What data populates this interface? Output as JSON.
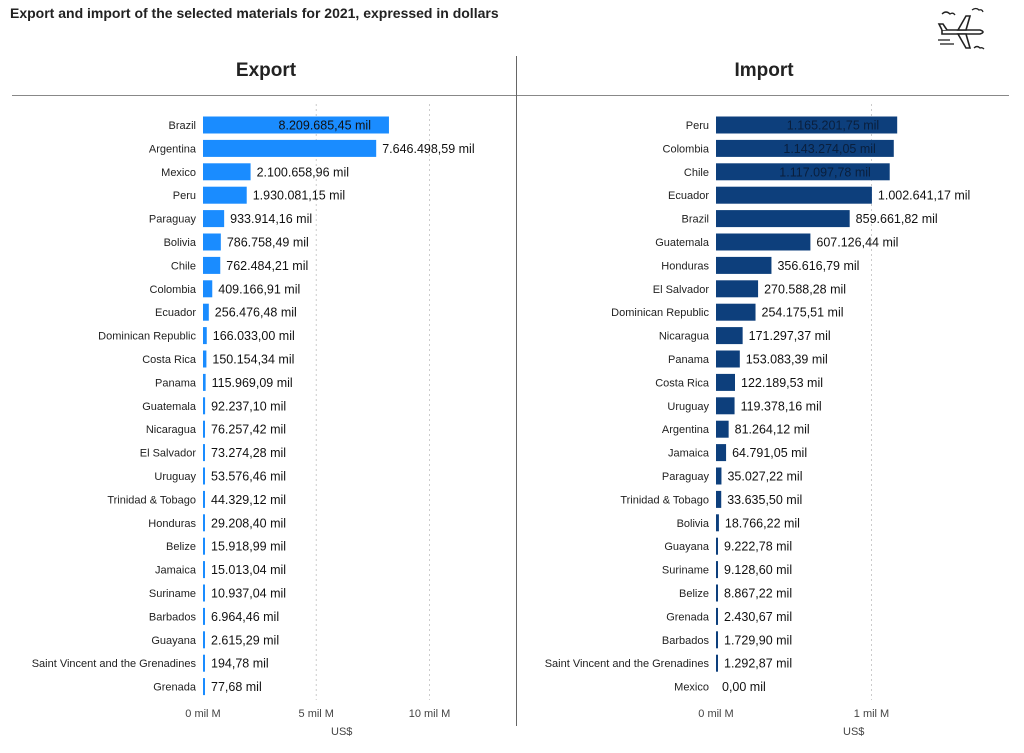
{
  "title": "Export and import of the selected materials for 2021, expressed in dollars",
  "icons": {
    "header": "airplane-icon"
  },
  "colors": {
    "export": "#1a8cff",
    "import": "#0d3f7c",
    "grid": "#cccccc"
  },
  "chart_data": [
    {
      "type": "bar",
      "orientation": "horizontal",
      "title": "Export",
      "xlabel": "US$",
      "xlim": [
        0,
        12
      ],
      "x_unit": "mil M",
      "xticks": [
        "0 mil M",
        "5 mil M",
        "10 mil M"
      ],
      "xtick_values": [
        0,
        5,
        10
      ],
      "categories": [
        "Brazil",
        "Argentina",
        "Mexico",
        "Peru",
        "Paraguay",
        "Bolivia",
        "Chile",
        "Colombia",
        "Ecuador",
        "Dominican Republic",
        "Costa Rica",
        "Panama",
        "Guatemala",
        "Nicaragua",
        "El Salvador",
        "Uruguay",
        "Trinidad & Tobago",
        "Honduras",
        "Belize",
        "Jamaica",
        "Suriname",
        "Barbados",
        "Guayana",
        "Saint Vincent and the Grenadines",
        "Grenada"
      ],
      "values": [
        8209685.45,
        7646498.59,
        2100658.96,
        1930081.15,
        933914.16,
        786758.49,
        762484.21,
        409166.91,
        256476.48,
        166033.0,
        150154.34,
        115969.09,
        92237.1,
        76257.42,
        73274.28,
        53576.46,
        44329.12,
        29208.4,
        15918.99,
        15013.04,
        10937.04,
        6964.46,
        2615.29,
        194.78,
        77.68
      ],
      "data_labels": [
        "8.209.685,45 mil",
        "7.646.498,59 mil",
        "2.100.658,96 mil",
        "1.930.081,15 mil",
        "933.914,16 mil",
        "786.758,49 mil",
        "762.484,21 mil",
        "409.166,91 mil",
        "256.476,48 mil",
        "166.033,00 mil",
        "150.154,34 mil",
        "115.969,09 mil",
        "92.237,10 mil",
        "76.257,42 mil",
        "73.274,28 mil",
        "53.576,46 mil",
        "44.329,12 mil",
        "29.208,40 mil",
        "15.918,99 mil",
        "15.013,04 mil",
        "10.937,04 mil",
        "6.964,46 mil",
        "2.615,29 mil",
        "194,78 mil",
        "77,68 mil"
      ],
      "grid": true
    },
    {
      "type": "bar",
      "orientation": "horizontal",
      "title": "Import",
      "xlabel": "US$",
      "xlim": [
        0,
        1.35
      ],
      "x_unit": "mil M",
      "xticks": [
        "0 mil M",
        "1 mil M"
      ],
      "xtick_values": [
        0,
        1
      ],
      "categories": [
        "Peru",
        "Colombia",
        "Chile",
        "Ecuador",
        "Brazil",
        "Guatemala",
        "Honduras",
        "El Salvador",
        "Dominican Republic",
        "Nicaragua",
        "Panama",
        "Costa Rica",
        "Uruguay",
        "Argentina",
        "Jamaica",
        "Paraguay",
        "Trinidad & Tobago",
        "Bolivia",
        "Guayana",
        "Suriname",
        "Belize",
        "Grenada",
        "Barbados",
        "Saint Vincent and the Grenadines",
        "Mexico"
      ],
      "values": [
        1165201.75,
        1143274.05,
        1117097.78,
        1002641.17,
        859661.82,
        607126.44,
        356616.79,
        270588.28,
        254175.51,
        171297.37,
        153083.39,
        122189.53,
        119378.16,
        81264.12,
        64791.05,
        35027.22,
        33635.5,
        18766.22,
        9222.78,
        9128.6,
        8867.22,
        2430.67,
        1729.9,
        1292.87,
        0.0
      ],
      "data_labels": [
        "1.165.201,75 mil",
        "1.143.274,05 mil",
        "1.117.097,78 mil",
        "1.002.641,17 mil",
        "859.661,82 mil",
        "607.126,44 mil",
        "356.616,79 mil",
        "270.588,28 mil",
        "254.175,51 mil",
        "171.297,37 mil",
        "153.083,39 mil",
        "122.189,53 mil",
        "119.378,16 mil",
        "81.264,12 mil",
        "64.791,05 mil",
        "35.027,22 mil",
        "33.635,50 mil",
        "18.766,22 mil",
        "9.222,78 mil",
        "9.128,60 mil",
        "8.867,22 mil",
        "2.430,67 mil",
        "1.729,90 mil",
        "1.292,87 mil",
        "0,00 mil"
      ],
      "grid": true
    }
  ]
}
